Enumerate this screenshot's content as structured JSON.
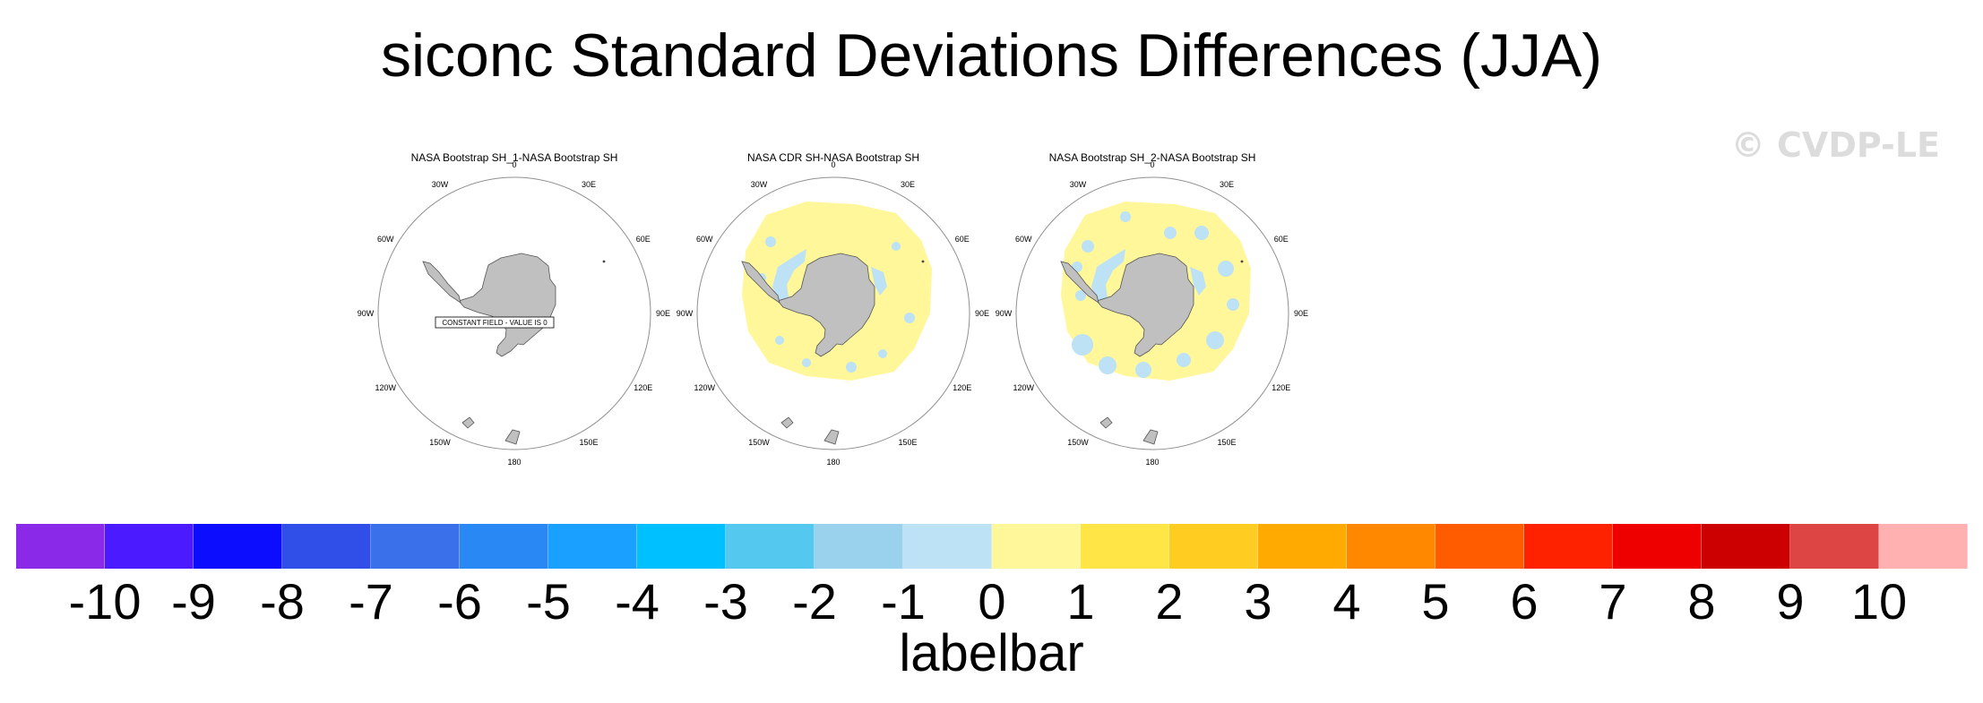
{
  "title": "siconc Standard Deviations Differences (JJA)",
  "watermark": "© CVDP-LE",
  "lon_labels": [
    "0",
    "30E",
    "60E",
    "90E",
    "120E",
    "150E",
    "180",
    "150W",
    "120W",
    "90W",
    "60W",
    "30W"
  ],
  "panels": [
    {
      "title": "NASA Bootstrap SH_1-NASA Bootstrap SH",
      "pattern": "none",
      "annotation": "CONSTANT FIELD - VALUE IS 0"
    },
    {
      "title": "NASA CDR SH-NASA Bootstrap SH",
      "pattern": "yellow-ring",
      "annotation": ""
    },
    {
      "title": "NASA Bootstrap SH_2-NASA Bootstrap SH",
      "pattern": "yellow-ring-blue-patches",
      "annotation": ""
    }
  ],
  "colors": {
    "ocean": "#ffffff",
    "land": "#c0c0c0",
    "positive_small": "#fff79a",
    "negative_small": "#bde1f5",
    "circle": "#909090"
  },
  "labelbar": {
    "caption": "labelbar",
    "tick_labels": [
      "-10",
      "-9",
      "-8",
      "-7",
      "-6",
      "-5",
      "-4",
      "-3",
      "-2",
      "-1",
      "0",
      "1",
      "2",
      "3",
      "4",
      "5",
      "6",
      "7",
      "8",
      "9",
      "10"
    ],
    "colors": [
      "#8a2ae8",
      "#4b1aff",
      "#0c0cff",
      "#2f4fe8",
      "#3a70ea",
      "#2a88f5",
      "#1aa0ff",
      "#00c0ff",
      "#55c8f0",
      "#9ad2ee",
      "#bde1f5",
      "#fff79a",
      "#ffe545",
      "#ffcc22",
      "#ffaa00",
      "#ff8800",
      "#ff5c00",
      "#ff2200",
      "#ee0000",
      "#cc0000",
      "#dd4444",
      "#ffb0b0"
    ]
  }
}
